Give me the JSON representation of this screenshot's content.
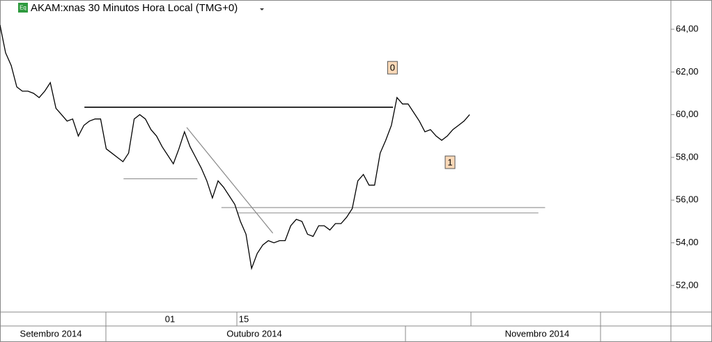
{
  "chart_data": {
    "type": "line",
    "title": "AKAM:xnas 30 Minutos Hora Local (TMG+0)",
    "badge": "Eq",
    "color": "#000000",
    "values": [
      64.2,
      62.9,
      62.3,
      61.3,
      61.1,
      61.1,
      61.0,
      60.8,
      61.1,
      61.5,
      60.3,
      60.0,
      59.7,
      59.8,
      59.0,
      59.5,
      59.7,
      59.8,
      59.8,
      58.4,
      58.2,
      58.0,
      57.8,
      58.2,
      59.8,
      60.0,
      59.8,
      59.3,
      59.0,
      58.5,
      58.1,
      57.7,
      58.4,
      59.2,
      58.5,
      58.0,
      57.5,
      56.9,
      56.1,
      56.9,
      56.6,
      56.2,
      55.8,
      55.0,
      54.4,
      52.8,
      53.5,
      53.9,
      54.1,
      54.0,
      54.1,
      54.1,
      54.8,
      55.1,
      55.0,
      54.4,
      54.3,
      54.8,
      54.8,
      54.6,
      54.9,
      54.9,
      55.2,
      55.6,
      56.9,
      57.2,
      56.7,
      56.7,
      58.2,
      58.8,
      59.5,
      60.8,
      60.5,
      60.5,
      60.1,
      59.7,
      59.2,
      59.3,
      59.0,
      58.8,
      59.0,
      59.3,
      59.5,
      59.7,
      60.0
    ],
    "xlim": [
      0,
      120
    ],
    "ylim": [
      50.79,
      65.37
    ],
    "yticks": [
      {
        "value": 52,
        "label": "52,00"
      },
      {
        "value": 54,
        "label": "54,00"
      },
      {
        "value": 56,
        "label": "56,00"
      },
      {
        "value": 58,
        "label": "58,00"
      },
      {
        "value": 60,
        "label": "60,00"
      },
      {
        "value": 62,
        "label": "62,00"
      },
      {
        "value": 64,
        "label": "64,00"
      }
    ],
    "day_labels": [
      "01",
      "15"
    ],
    "month_labels": [
      "Setembro 2014",
      "Outubro 2014",
      "Novembro 2014"
    ],
    "lines": [
      {
        "x": [
          15.1,
          70.3
        ],
        "y": [
          60.35,
          60.35
        ],
        "color": "#000000"
      },
      {
        "x": [
          22.1,
          35.3
        ],
        "y": [
          57.0,
          57.0
        ],
        "color": "#999999"
      },
      {
        "x": [
          39.6,
          97.5
        ],
        "y": [
          55.65,
          55.65
        ],
        "color": "#999999"
      },
      {
        "x": [
          42.4,
          96.3
        ],
        "y": [
          55.4,
          55.4
        ],
        "color": "#999999"
      },
      {
        "x": [
          33.4,
          48.8
        ],
        "y": [
          59.4,
          54.45
        ],
        "color": "#888888"
      }
    ],
    "annotations": [
      {
        "text": "0",
        "x": 70.2,
        "y": 62.2
      },
      {
        "text": "1",
        "x": 80.5,
        "y": 57.77
      }
    ]
  }
}
